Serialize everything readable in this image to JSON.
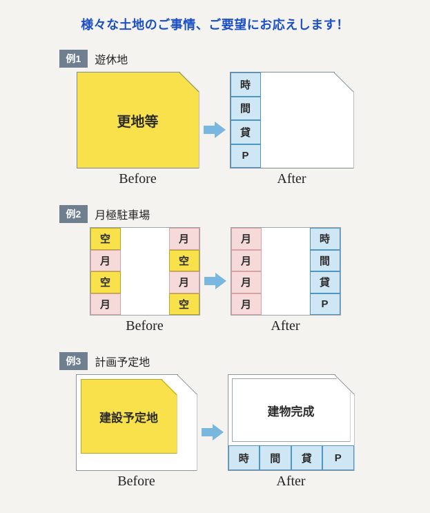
{
  "headline": "様々な土地のご事情、ご要望にお応えします！",
  "labels": {
    "before": "Before",
    "after": "After"
  },
  "arrow_color": "#79b7df",
  "colors": {
    "background": "#f5f3ef",
    "headline": "#1a4fc8",
    "tag_bg": "#6f7f8f",
    "yellow": "#f8e14a",
    "blue_cell": "#cfe7f4",
    "blue_border": "#4b95c9",
    "pink_cell": "#f6dada",
    "lot_border": "#8b949c"
  },
  "ex1": {
    "tag": "例1",
    "title": "遊休地",
    "before_label": "更地等",
    "after_cells": [
      "時",
      "間",
      "貸",
      "P"
    ]
  },
  "ex2": {
    "tag": "例2",
    "title": "月極駐車場",
    "before_left": [
      "空",
      "月",
      "空",
      "月"
    ],
    "before_right": [
      "月",
      "空",
      "月",
      "空"
    ],
    "before_left_style": [
      "yellow",
      "pink",
      "yellow",
      "pink"
    ],
    "before_right_style": [
      "pink",
      "yellow",
      "pink",
      "yellow"
    ],
    "after_left": [
      "月",
      "月",
      "月",
      "月"
    ],
    "after_right": [
      "時",
      "間",
      "貸",
      "P"
    ]
  },
  "ex3": {
    "tag": "例3",
    "title": "計画予定地",
    "before_label": "建設予定地",
    "after_label": "建物完成",
    "after_row": [
      "時",
      "間",
      "貸",
      "P"
    ]
  }
}
